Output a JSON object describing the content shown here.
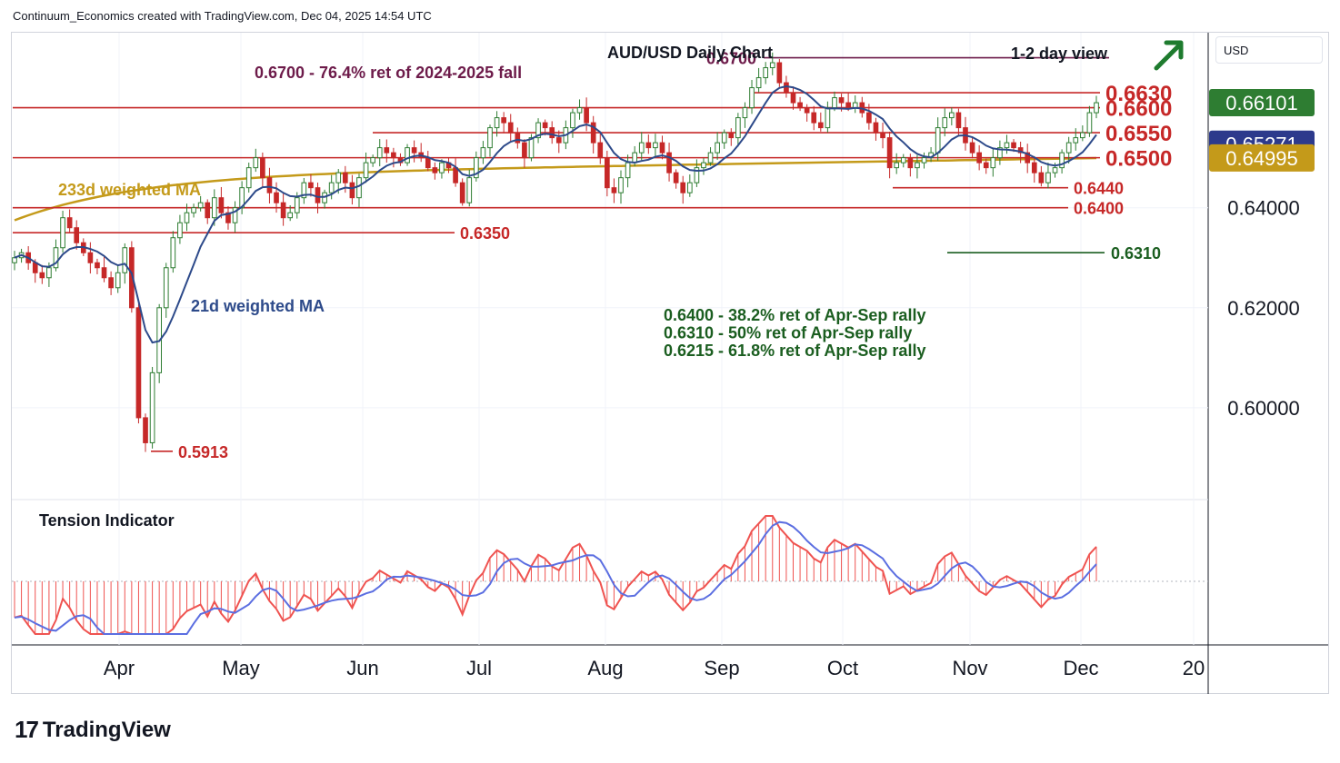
{
  "header": {
    "attribution": "Continuum_Economics created with TradingView.com, Dec 04, 2025 14:54 UTC"
  },
  "price_scale": {
    "currency": "USD"
  },
  "footer": {
    "brand": "TradingView"
  },
  "colors": {
    "up": "#2e7d32",
    "down": "#c62828",
    "resistance": "#c62828",
    "support": "#1b5e20",
    "ma21": "#2d4a8a",
    "ma233": "#c49a1a",
    "retracement": "#6d1b4a",
    "tension_fast": "#ef5350",
    "tension_slow": "#5b6ee1",
    "arrow": "#1e7b2e"
  },
  "chart_data": {
    "type": "candlestick",
    "title": "AUD/USD Daily Chart",
    "subtitle": "1-2 day view",
    "x_labels": [
      "Apr",
      "May",
      "Jun",
      "Jul",
      "Aug",
      "Sep",
      "Oct",
      "Nov",
      "Dec",
      "20"
    ],
    "y_ticks": [
      "0.64000",
      "0.62000",
      "0.60000"
    ],
    "ylim": [
      0.582,
      0.675
    ],
    "levels": [
      {
        "label": "0.6700",
        "value": 0.67,
        "kind": "retracement"
      },
      {
        "label": "0.6630",
        "value": 0.663,
        "kind": "resistance"
      },
      {
        "label": "0.6600",
        "value": 0.66,
        "kind": "resistance"
      },
      {
        "label": "0.6550",
        "value": 0.655,
        "kind": "resistance"
      },
      {
        "label": "0.6500",
        "value": 0.65,
        "kind": "resistance"
      },
      {
        "label": "0.6440",
        "value": 0.644,
        "kind": "resistance"
      },
      {
        "label": "0.6400",
        "value": 0.64,
        "kind": "resistance"
      },
      {
        "label": "0.6350",
        "value": 0.635,
        "kind": "resistance"
      },
      {
        "label": "0.6310",
        "value": 0.631,
        "kind": "support"
      },
      {
        "label": "0.5913",
        "value": 0.5913,
        "kind": "resistance"
      }
    ],
    "badges": [
      {
        "label": "0.66101",
        "value": 0.66101,
        "kind": "price"
      },
      {
        "label": "0.65271",
        "value": 0.65271,
        "kind": "ma21"
      },
      {
        "label": "0.64995",
        "value": 0.64995,
        "kind": "ma233"
      }
    ],
    "annotations": {
      "retracement_note": "0.6700 - 76.4% ret of 2024-2025 fall",
      "ma233_label": "233d weighted MA",
      "ma21_label": "21d weighted MA",
      "fib_notes": [
        "0.6400 - 38.2% ret of Apr-Sep rally",
        "0.6310 - 50% ret of Apr-Sep rally",
        "0.6215 - 61.8% ret of Apr-Sep rally"
      ],
      "indicator_title": "Tension Indicator"
    },
    "series_close_approx": [
      0.63,
      0.631,
      0.629,
      0.627,
      0.626,
      0.628,
      0.632,
      0.638,
      0.636,
      0.633,
      0.631,
      0.629,
      0.628,
      0.626,
      0.624,
      0.627,
      0.632,
      0.62,
      0.598,
      0.593,
      0.607,
      0.62,
      0.628,
      0.634,
      0.637,
      0.639,
      0.64,
      0.641,
      0.638,
      0.642,
      0.639,
      0.637,
      0.64,
      0.644,
      0.648,
      0.65,
      0.646,
      0.643,
      0.641,
      0.638,
      0.639,
      0.642,
      0.645,
      0.644,
      0.641,
      0.643,
      0.645,
      0.647,
      0.645,
      0.642,
      0.646,
      0.649,
      0.65,
      0.652,
      0.651,
      0.65,
      0.649,
      0.652,
      0.651,
      0.65,
      0.648,
      0.647,
      0.649,
      0.648,
      0.645,
      0.641,
      0.646,
      0.65,
      0.652,
      0.656,
      0.658,
      0.657,
      0.655,
      0.653,
      0.65,
      0.654,
      0.657,
      0.656,
      0.654,
      0.653,
      0.656,
      0.659,
      0.66,
      0.657,
      0.653,
      0.65,
      0.644,
      0.643,
      0.646,
      0.649,
      0.651,
      0.653,
      0.652,
      0.653,
      0.651,
      0.647,
      0.645,
      0.643,
      0.645,
      0.648,
      0.649,
      0.651,
      0.653,
      0.655,
      0.654,
      0.658,
      0.66,
      0.664,
      0.666,
      0.668,
      0.669,
      0.665,
      0.663,
      0.661,
      0.66,
      0.659,
      0.657,
      0.656,
      0.66,
      0.662,
      0.661,
      0.66,
      0.661,
      0.659,
      0.657,
      0.655,
      0.654,
      0.648,
      0.649,
      0.65,
      0.648,
      0.649,
      0.65,
      0.651,
      0.656,
      0.658,
      0.659,
      0.656,
      0.653,
      0.651,
      0.649,
      0.648,
      0.65,
      0.652,
      0.653,
      0.652,
      0.651,
      0.649,
      0.647,
      0.645,
      0.647,
      0.648,
      0.651,
      0.653,
      0.654,
      0.655,
      0.659,
      0.661
    ]
  }
}
